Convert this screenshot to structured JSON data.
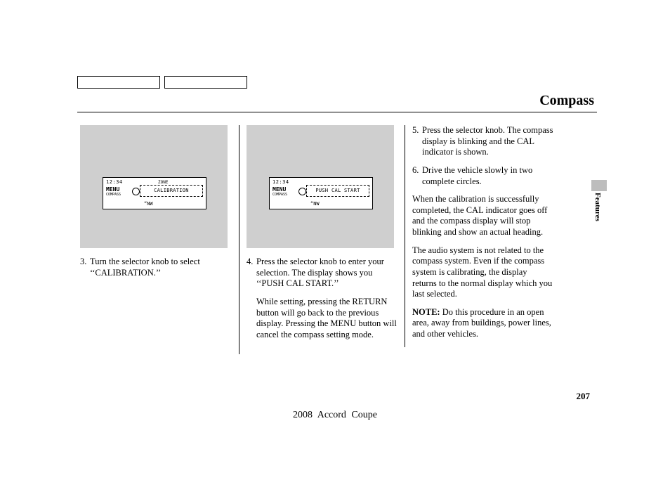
{
  "header": {
    "title": "Compass"
  },
  "columns": {
    "col1": {
      "lcd": {
        "top": "12:34",
        "mid": "MENU",
        "midsmall": "COMPASS",
        "zone": "ZONE",
        "box": "CALIBRATION",
        "nw": "“NW"
      },
      "step3_num": "3.",
      "step3_text": "Turn the selector knob to select ‘‘CALIBRATION.’’"
    },
    "col2": {
      "lcd": {
        "top": "12:34",
        "mid": "MENU",
        "midsmall": "COMPASS",
        "box": "PUSH CAL START",
        "nw": "“NW"
      },
      "step4_num": "4.",
      "step4_text": "Press the selector knob to enter your selection. The display shows you ‘‘PUSH CAL START.’’",
      "step4_para2": "While setting, pressing the RETURN button will go back to the previous display. Pressing the MENU button will cancel the compass setting mode."
    },
    "col3": {
      "step5_num": "5.",
      "step5_text": "Press the selector knob. The compass display is blinking and the CAL indicator is shown.",
      "step6_num": "6.",
      "step6_text": "Drive the vehicle slowly in two complete circles.",
      "para1": "When the calibration is successfully completed, the CAL indicator goes off and the compass display will stop blinking and show an actual heading.",
      "para2": "The audio system is not related to the compass system. Even if the compass system is calibrating, the display returns to the normal display which you last selected.",
      "note_label": "NOTE:",
      "note_text": " Do this procedure in an open area, away from buildings, power lines, and other vehicles."
    }
  },
  "side": {
    "label": "Features"
  },
  "footer": {
    "page_number": "207",
    "model": "2008  Accord  Coupe"
  }
}
